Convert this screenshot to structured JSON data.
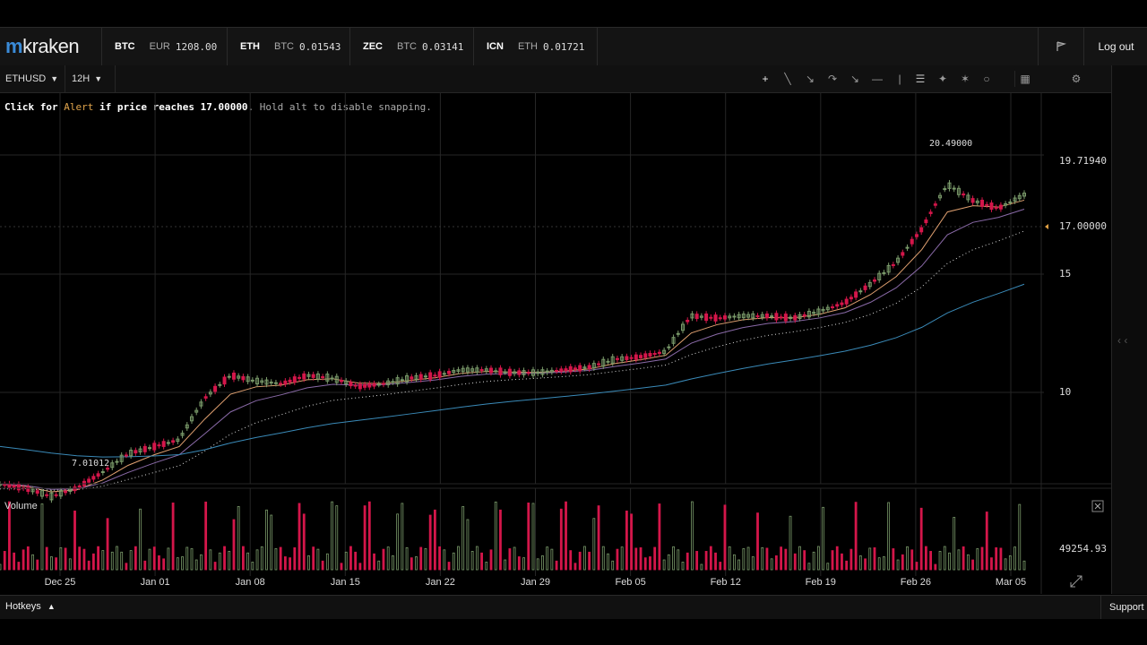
{
  "app": {
    "logo_text": "kraken",
    "logout_label": "Log out",
    "support_label": "Support",
    "hotkeys_label": "Hotkeys"
  },
  "tickers": [
    {
      "symbol": "BTC",
      "pair": "EUR",
      "value": "1208.00"
    },
    {
      "symbol": "ETH",
      "pair": "BTC",
      "value": "0.01543"
    },
    {
      "symbol": "ZEC",
      "pair": "BTC",
      "value": "0.03141"
    },
    {
      "symbol": "ICN",
      "pair": "ETH",
      "value": "0.01721"
    }
  ],
  "toolbar": {
    "market": "ETHUSD",
    "interval": "12H"
  },
  "alert_hint": {
    "prefix": "Click for",
    "keyword": "Alert",
    "middle": "if price reaches",
    "price": "17.00000",
    "suffix": ". Hold alt to disable snapping."
  },
  "volume_label": "Volume",
  "colors": {
    "up": "#7a9a6a",
    "down": "#d4164a",
    "ema1": "#e0a070",
    "ema2": "#8a6aa8",
    "ema3": "#3a8ab8",
    "bg": "#000000"
  },
  "chart_data": {
    "type": "candlestick",
    "x": [
      "Dec 25",
      "Jan 01",
      "Jan 08",
      "Jan 15",
      "Jan 22",
      "Jan 29",
      "Feb 05",
      "Feb 12",
      "Feb 19",
      "Feb 26",
      "Mar 05"
    ],
    "price_axis_labels": [
      "19.71940",
      "17.00000",
      "15",
      "10"
    ],
    "annotations": {
      "high": "20.49000",
      "low": "7.01012",
      "alert_level": "17.00000"
    },
    "volume_axis_label": "49254.93",
    "price_series": [
      7.3,
      7.2,
      7.0,
      7.2,
      7.6,
      8.1,
      8.3,
      8.5,
      9.8,
      10.6,
      10.4,
      10.3,
      10.6,
      10.5,
      10.2,
      10.3,
      10.5,
      10.6,
      10.8,
      10.8,
      10.7,
      10.7,
      10.8,
      10.9,
      11.2,
      11.3,
      11.5,
      13.0,
      12.9,
      13.0,
      13.0,
      12.9,
      13.2,
      13.6,
      14.5,
      15.6,
      17.5,
      20.4,
      19.3,
      18.8,
      19.7
    ]
  }
}
